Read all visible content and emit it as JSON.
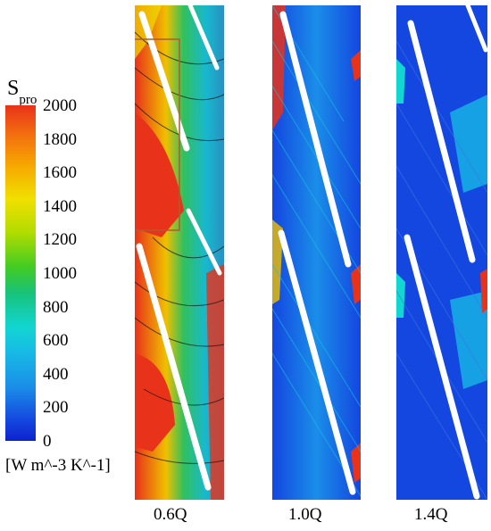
{
  "colorbar": {
    "title": "S",
    "title_sub": "pro",
    "ticks": [
      "2000",
      "1800",
      "1600",
      "1400",
      "1200",
      "1000",
      "800",
      "600",
      "400",
      "200",
      "0"
    ],
    "unit": "[W m^-3 K^-1]"
  },
  "panels": [
    {
      "label": "0.6Q"
    },
    {
      "label": "1.0Q"
    },
    {
      "label": "1.4Q"
    }
  ],
  "colors": {
    "high": "#e8321a",
    "mid": "#f0e000",
    "low": "#0c22cc",
    "highlight_box": "#b05a30"
  }
}
